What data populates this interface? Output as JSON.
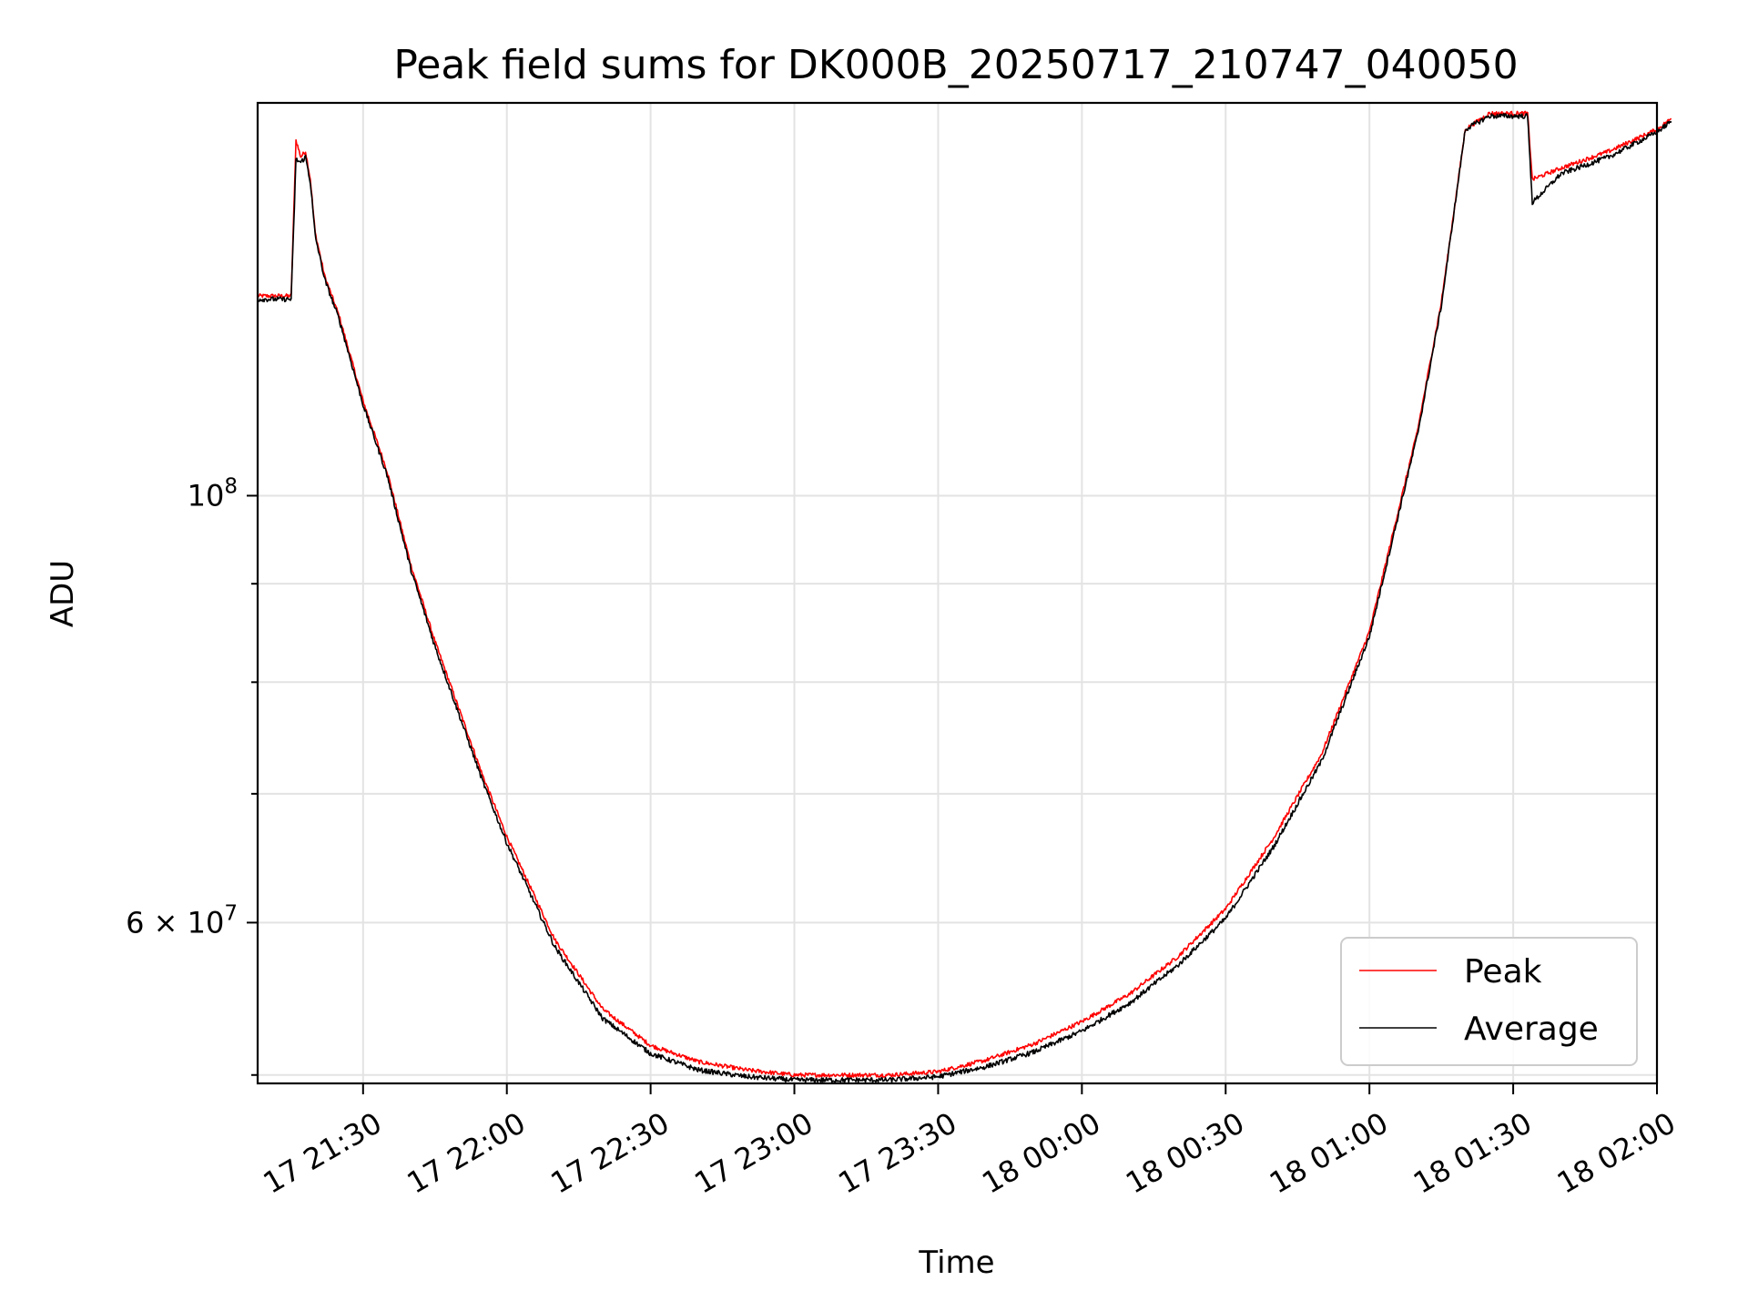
{
  "chart_data": {
    "type": "line",
    "title": "Peak field sums for DK000B_20250717_210747_040050",
    "xlabel": "Time",
    "ylabel": "ADU",
    "y_scale": "log",
    "xlim": [
      "17 21:08",
      "18 02:00"
    ],
    "ylim": [
      49500000,
      160000000
    ],
    "x_ticks": [
      "17 21:30",
      "17 22:00",
      "17 22:30",
      "17 23:00",
      "17 23:30",
      "18 00:00",
      "18 00:30",
      "18 01:00",
      "18 01:30",
      "18 02:00"
    ],
    "y_major_ticks": [
      {
        "value": 100000000,
        "label": "10^8"
      },
      {
        "value": 60000000,
        "label": "6×10^7"
      }
    ],
    "y_minor_ticks": [
      50000000,
      70000000,
      80000000,
      90000000
    ],
    "grid": true,
    "legend_position": "lower right",
    "series": [
      {
        "name": "Peak",
        "color": "#ff0000",
        "x": [
          "17 21:08",
          "17 21:14",
          "17 21:15",
          "17 21:16",
          "17 21:17",
          "17 21:18",
          "17 21:19",
          "17 21:20",
          "17 21:22",
          "17 21:25",
          "17 21:30",
          "17 21:35",
          "17 21:40",
          "17 21:45",
          "17 21:50",
          "17 21:55",
          "17 22:00",
          "17 22:10",
          "17 22:20",
          "17 22:30",
          "17 22:40",
          "17 22:50",
          "17 23:00",
          "17 23:10",
          "17 23:20",
          "17 23:30",
          "17 23:40",
          "17 23:50",
          "18 00:00",
          "18 00:10",
          "18 00:20",
          "18 00:30",
          "18 00:40",
          "18 00:50",
          "18 01:00",
          "18 01:10",
          "18 01:15",
          "18 01:20",
          "18 01:25",
          "18 01:30",
          "18 01:33",
          "18 01:34",
          "18 01:40",
          "18 01:50",
          "18 02:00",
          "18 02:03"
        ],
        "values": [
          127000000,
          127000000,
          127000000,
          153000000,
          150000000,
          151000000,
          146000000,
          137000000,
          130000000,
          124000000,
          112000000,
          103000000,
          92000000,
          84000000,
          77500000,
          71500000,
          66500000,
          58800000,
          54100000,
          51800000,
          50800000,
          50300000,
          50000000,
          50000000,
          50000000,
          50200000,
          50900000,
          51900000,
          53300000,
          55100000,
          57600000,
          61000000,
          66400000,
          73400000,
          85000000,
          108000000,
          126000000,
          155000000,
          158000000,
          158000000,
          158000000,
          146000000,
          148000000,
          151000000,
          155000000,
          157000000
        ]
      },
      {
        "name": "Average",
        "color": "#000000",
        "x": [
          "17 21:08",
          "17 21:14",
          "17 21:15",
          "17 21:16",
          "17 21:17",
          "17 21:18",
          "17 21:19",
          "17 21:20",
          "17 21:22",
          "17 21:25",
          "17 21:30",
          "17 21:35",
          "17 21:40",
          "17 21:45",
          "17 21:50",
          "17 21:55",
          "17 22:00",
          "17 22:10",
          "17 22:20",
          "17 22:30",
          "17 22:40",
          "17 22:50",
          "17 23:00",
          "17 23:10",
          "17 23:20",
          "17 23:30",
          "17 23:40",
          "17 23:50",
          "18 00:00",
          "18 00:10",
          "18 00:20",
          "18 00:30",
          "18 00:40",
          "18 00:50",
          "18 01:00",
          "18 01:10",
          "18 01:15",
          "18 01:20",
          "18 01:25",
          "18 01:30",
          "18 01:33",
          "18 01:34",
          "18 01:40",
          "18 01:50",
          "18 02:00",
          "18 02:03"
        ],
        "values": [
          126500000,
          126500000,
          126500000,
          149500000,
          149000000,
          150000000,
          145500000,
          136500000,
          129500000,
          123500000,
          111500000,
          102500000,
          91500000,
          83500000,
          77000000,
          71000000,
          66000000,
          58300000,
          53500000,
          51300000,
          50300000,
          49900000,
          49700000,
          49700000,
          49700000,
          49900000,
          50500000,
          51400000,
          52700000,
          54500000,
          57000000,
          60300000,
          65700000,
          72800000,
          84500000,
          107500000,
          125500000,
          155000000,
          157500000,
          157500000,
          157500000,
          142000000,
          147000000,
          150000000,
          154500000,
          156500000
        ]
      }
    ]
  }
}
